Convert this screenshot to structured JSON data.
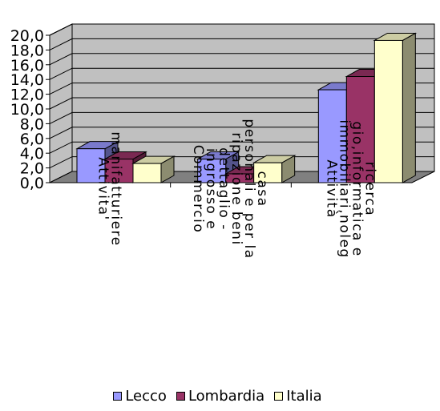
{
  "chart_data": {
    "type": "bar",
    "categories": [
      [
        "Attivita'",
        "manifatturiere"
      ],
      [
        "Commercio",
        "ingrosso e",
        "dettaglio -",
        "ripazione beni",
        "personali e per la",
        "casa"
      ],
      [
        "Attività",
        "immobiliari,noleg",
        "gio,informatica e",
        "ricerca"
      ]
    ],
    "series": [
      {
        "name": "Lecco",
        "color": "#9999ff",
        "values": [
          4.6,
          3.2,
          12.6
        ]
      },
      {
        "name": "Lombardia",
        "color": "#993366",
        "values": [
          3.2,
          1.2,
          14.4
        ]
      },
      {
        "name": "Italia",
        "color": "#ffffcc",
        "values": [
          2.6,
          2.7,
          19.3
        ]
      }
    ],
    "yticks": [
      "0,0",
      "2,0",
      "4,0",
      "6,0",
      "8,0",
      "10,0",
      "12,0",
      "14,0",
      "16,0",
      "18,0",
      "20,0"
    ],
    "ylim": [
      0,
      20
    ],
    "grid": true,
    "legend_position": "bottom",
    "wall_color": "#c0c0c0",
    "floor_color": "#808080"
  }
}
